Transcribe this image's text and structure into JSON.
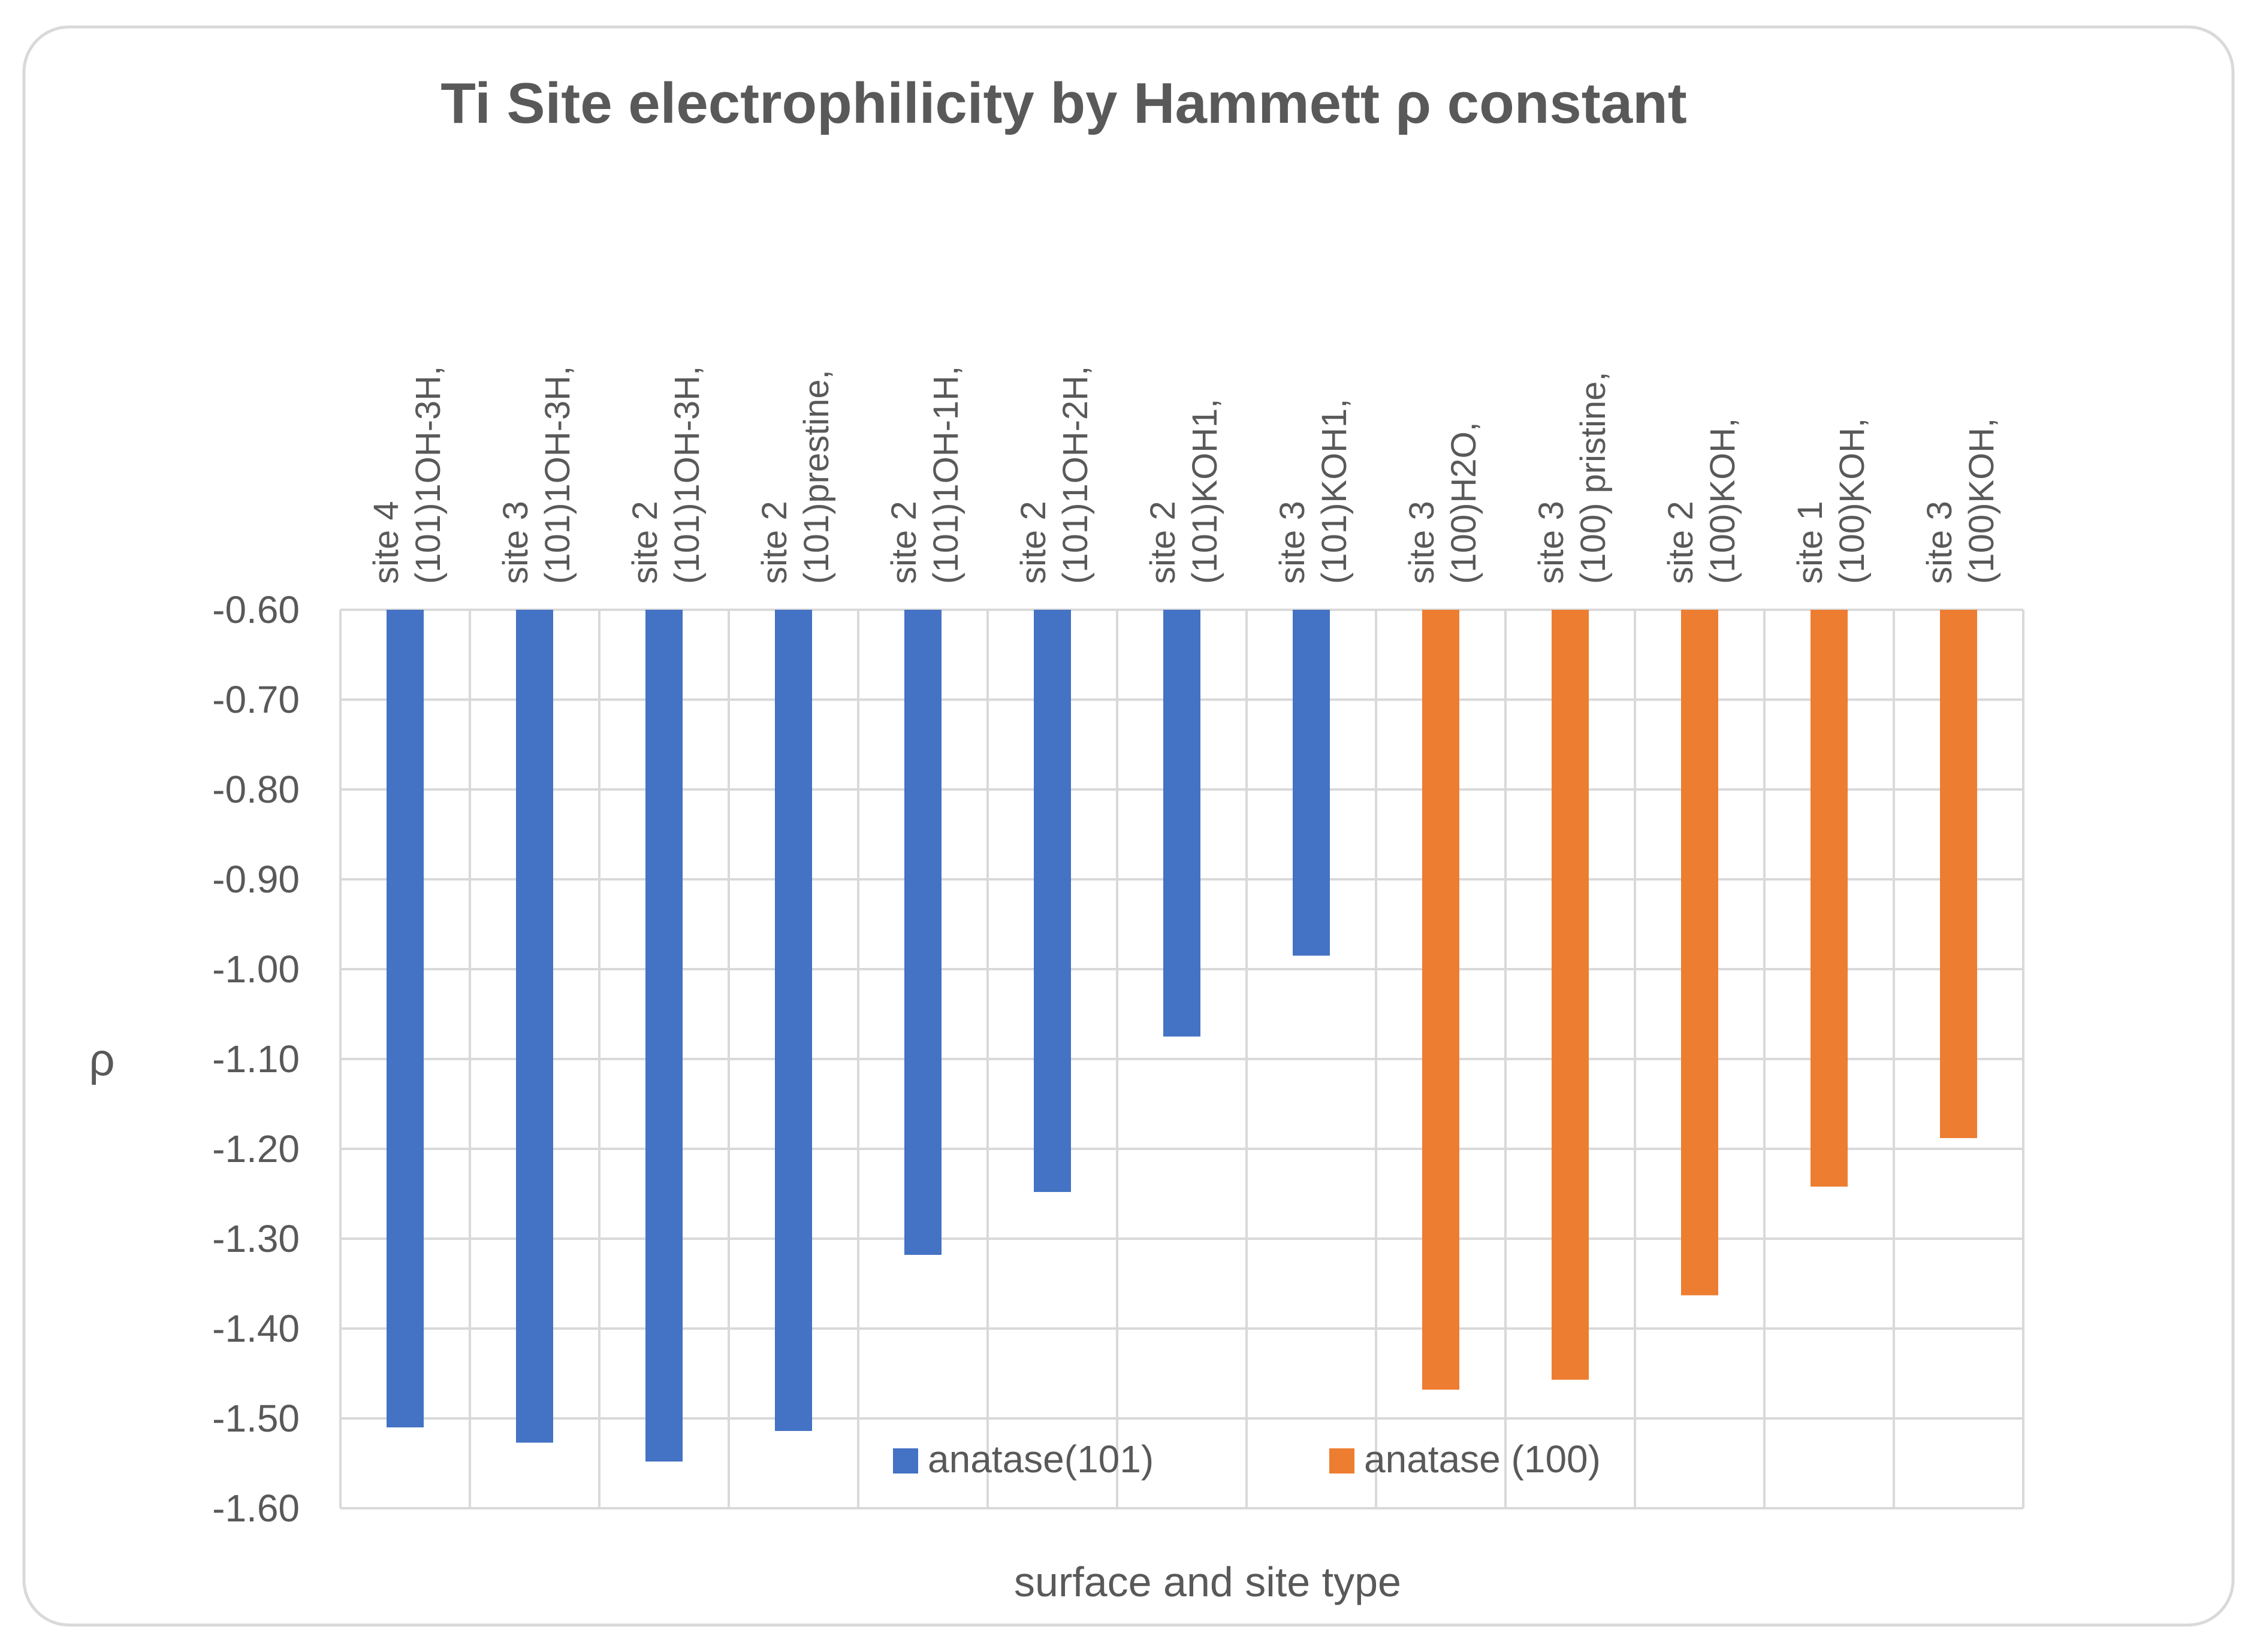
{
  "chart_data": {
    "type": "bar",
    "title": "Ti Site electrophilicity by Hammett ρ constant",
    "xlabel": "surface and site type",
    "ylabel": "ρ",
    "ylim": [
      -1.6,
      -0.6
    ],
    "ytick_step": 0.1,
    "grid": true,
    "legend_position": "bottom-inside",
    "colors": {
      "series_101": "#4472C4",
      "series_100": "#ED7D31",
      "grid": "#D9D9D9",
      "axis_text": "#595959",
      "frame": "#D9D9D9"
    },
    "series": [
      {
        "name": "anatase(101)",
        "color_key": "series_101"
      },
      {
        "name": "anatase (100)",
        "color_key": "series_100"
      }
    ],
    "categories": [
      {
        "line1": "site 4",
        "line2": "(101)1OH-3H,",
        "value": -1.51,
        "series": 0
      },
      {
        "line1": "site 3",
        "line2": "(101)1OH-3H,",
        "value": -1.527,
        "series": 0
      },
      {
        "line1": "site 2",
        "line2": "(101)1OH-3H,",
        "value": -1.548,
        "series": 0
      },
      {
        "line1": "site 2",
        "line2": "(101)prestine,",
        "value": -1.514,
        "series": 0
      },
      {
        "line1": "site 2",
        "line2": "(101)1OH-1H,",
        "value": -1.318,
        "series": 0
      },
      {
        "line1": "site 2",
        "line2": "(101)1OH-2H,",
        "value": -1.248,
        "series": 0
      },
      {
        "line1": "site 2",
        "line2": "(101)KOH1,",
        "value": -1.075,
        "series": 0
      },
      {
        "line1": "site 3",
        "line2": "(101)KOH1,",
        "value": -0.985,
        "series": 0
      },
      {
        "line1": "site 3",
        "line2": "(100)H2O,",
        "value": -1.468,
        "series": 1
      },
      {
        "line1": "site 3",
        "line2": "(100) pristine,",
        "value": -1.457,
        "series": 1
      },
      {
        "line1": "site 2",
        "line2": "(100)KOH,",
        "value": -1.363,
        "series": 1
      },
      {
        "line1": "site 1",
        "line2": "(100)KOH,",
        "value": -1.242,
        "series": 1
      },
      {
        "line1": "site 3",
        "line2": "(100)KOH,",
        "value": -1.188,
        "series": 1
      }
    ]
  }
}
